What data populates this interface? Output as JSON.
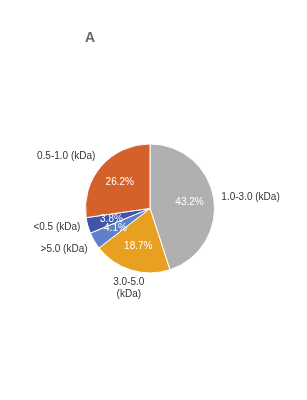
{
  "chart_data": {
    "type": "pie",
    "title": "A",
    "categories": [
      "1.0-3.0 (kDa)",
      "3.0-5.0\n(kDa)",
      ">5.0 (kDa)",
      "<0.5 (kDa)",
      "0.5-1.0 (kDa)"
    ],
    "values": [
      43.2,
      18.7,
      4.1,
      3.8,
      26.2
    ],
    "value_labels": [
      "43.2%",
      "18.7%",
      "4.1%",
      "3.8%",
      "26.2%"
    ],
    "colors": [
      "#b0b0b0",
      "#e8a020",
      "#6080cc",
      "#4055aa",
      "#d4612a"
    ],
    "data_labels": true
  }
}
